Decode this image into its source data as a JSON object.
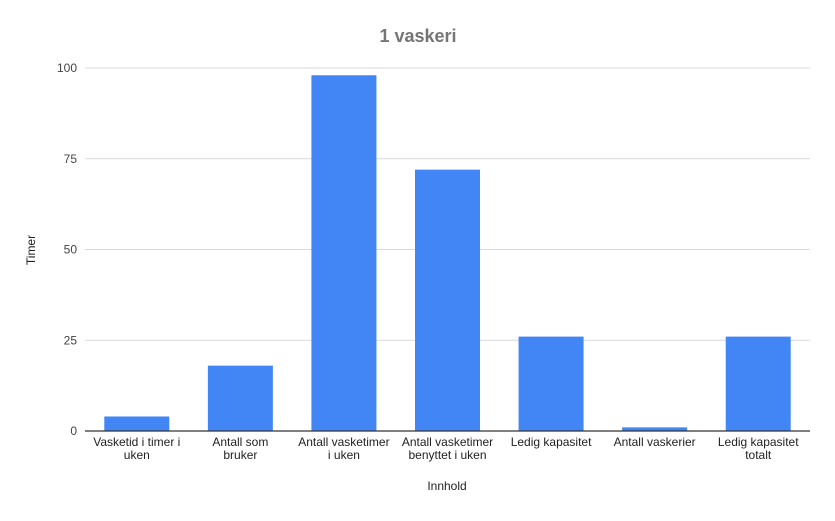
{
  "chart_data": {
    "type": "bar",
    "title": "1 vaskeri",
    "xlabel": "Innhold",
    "ylabel": "Timer",
    "ylim": [
      0,
      100
    ],
    "yticks": [
      0,
      25,
      50,
      75,
      100
    ],
    "grid": true,
    "categories": [
      [
        "Vasketid i timer i",
        "uken"
      ],
      [
        "Antall som",
        "bruker"
      ],
      [
        "Antall vasketimer",
        "i uken"
      ],
      [
        "Antall vasketimer",
        "benyttet i uken"
      ],
      [
        "Ledig kapasitet"
      ],
      [
        "Antall vaskerier"
      ],
      [
        "Ledig kapasitet",
        "totalt"
      ]
    ],
    "values": [
      4,
      18,
      98,
      72,
      26,
      1,
      26
    ],
    "color": "#4285f4"
  }
}
